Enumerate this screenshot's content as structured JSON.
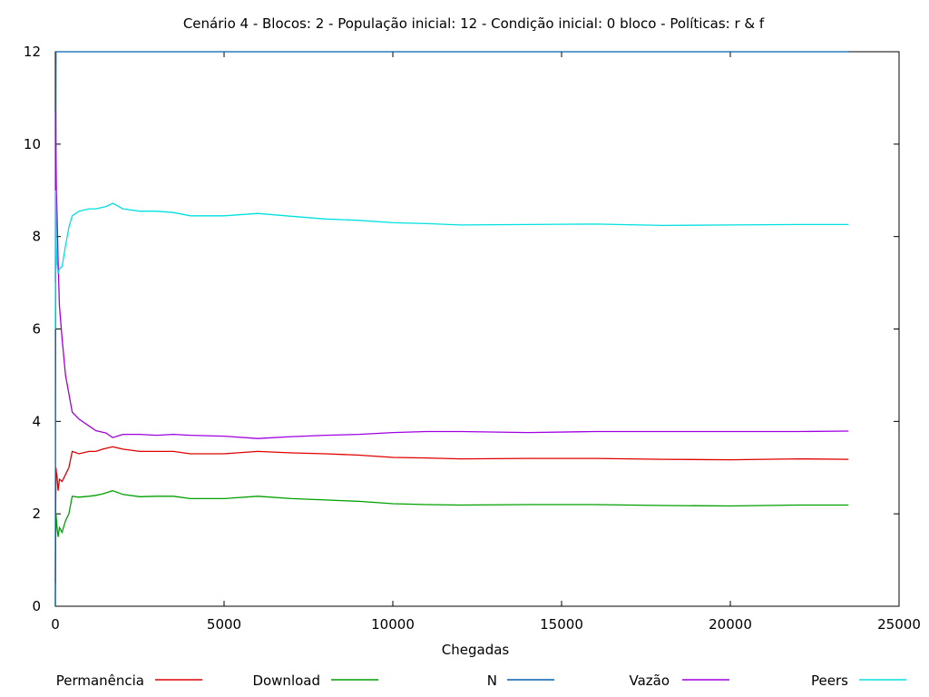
{
  "chart_data": {
    "type": "line",
    "title": "Cenário 4 - Blocos: 2 - População inicial: 12 - Condição inicial: 0 bloco - Políticas: r & f",
    "xlabel": "Chegadas",
    "ylabel": "",
    "xlim": [
      0,
      25000
    ],
    "ylim": [
      0,
      12
    ],
    "xticks": [
      0,
      5000,
      10000,
      15000,
      20000,
      25000
    ],
    "yticks": [
      0,
      2,
      4,
      6,
      8,
      10,
      12
    ],
    "legend_position": "bottom",
    "series": [
      {
        "name": "Permanência",
        "color": "#e00000",
        "points": [
          [
            0,
            0.5
          ],
          [
            10,
            2.2
          ],
          [
            20,
            3.0
          ],
          [
            30,
            2.9
          ],
          [
            50,
            2.8
          ],
          [
            80,
            2.5
          ],
          [
            120,
            2.75
          ],
          [
            200,
            2.7
          ],
          [
            300,
            2.85
          ],
          [
            400,
            3.0
          ],
          [
            500,
            3.35
          ],
          [
            700,
            3.3
          ],
          [
            1000,
            3.35
          ],
          [
            1200,
            3.35
          ],
          [
            1400,
            3.4
          ],
          [
            1700,
            3.45
          ],
          [
            2000,
            3.4
          ],
          [
            2500,
            3.35
          ],
          [
            3000,
            3.35
          ],
          [
            3500,
            3.35
          ],
          [
            4000,
            3.3
          ],
          [
            5000,
            3.3
          ],
          [
            6000,
            3.35
          ],
          [
            7000,
            3.32
          ],
          [
            8000,
            3.3
          ],
          [
            9000,
            3.27
          ],
          [
            10000,
            3.22
          ],
          [
            11000,
            3.21
          ],
          [
            12000,
            3.19
          ],
          [
            14000,
            3.2
          ],
          [
            16000,
            3.2
          ],
          [
            18000,
            3.18
          ],
          [
            20000,
            3.17
          ],
          [
            22000,
            3.19
          ],
          [
            23500,
            3.18
          ]
        ]
      },
      {
        "name": "Download",
        "color": "#00a000",
        "points": [
          [
            0,
            0.0
          ],
          [
            10,
            1.5
          ],
          [
            20,
            2.0
          ],
          [
            30,
            1.9
          ],
          [
            50,
            1.7
          ],
          [
            80,
            1.5
          ],
          [
            120,
            1.7
          ],
          [
            200,
            1.6
          ],
          [
            300,
            1.85
          ],
          [
            400,
            2.0
          ],
          [
            500,
            2.38
          ],
          [
            700,
            2.36
          ],
          [
            1000,
            2.38
          ],
          [
            1200,
            2.4
          ],
          [
            1400,
            2.43
          ],
          [
            1700,
            2.5
          ],
          [
            2000,
            2.42
          ],
          [
            2500,
            2.37
          ],
          [
            3000,
            2.38
          ],
          [
            3500,
            2.38
          ],
          [
            4000,
            2.33
          ],
          [
            5000,
            2.33
          ],
          [
            6000,
            2.38
          ],
          [
            7000,
            2.33
          ],
          [
            8000,
            2.3
          ],
          [
            9000,
            2.27
          ],
          [
            10000,
            2.22
          ],
          [
            11000,
            2.2
          ],
          [
            12000,
            2.19
          ],
          [
            14000,
            2.2
          ],
          [
            16000,
            2.2
          ],
          [
            18000,
            2.18
          ],
          [
            20000,
            2.17
          ],
          [
            22000,
            2.19
          ],
          [
            23500,
            2.19
          ]
        ]
      },
      {
        "name": "N",
        "color": "#0060b0",
        "points": [
          [
            0,
            0.0
          ],
          [
            5,
            4
          ],
          [
            10,
            8
          ],
          [
            20,
            12
          ],
          [
            23500,
            12
          ]
        ]
      },
      {
        "name": "Vazão",
        "color": "#a000e0",
        "points": [
          [
            0,
            7.0
          ],
          [
            10,
            10.7
          ],
          [
            20,
            9.8
          ],
          [
            30,
            9.0
          ],
          [
            50,
            8.5
          ],
          [
            80,
            7.5
          ],
          [
            120,
            6.5
          ],
          [
            200,
            5.8
          ],
          [
            300,
            5.0
          ],
          [
            400,
            4.6
          ],
          [
            500,
            4.2
          ],
          [
            700,
            4.05
          ],
          [
            1000,
            3.9
          ],
          [
            1200,
            3.8
          ],
          [
            1500,
            3.75
          ],
          [
            1700,
            3.65
          ],
          [
            2000,
            3.72
          ],
          [
            2500,
            3.72
          ],
          [
            3000,
            3.7
          ],
          [
            3500,
            3.72
          ],
          [
            4000,
            3.7
          ],
          [
            5000,
            3.68
          ],
          [
            6000,
            3.63
          ],
          [
            7000,
            3.67
          ],
          [
            8000,
            3.7
          ],
          [
            9000,
            3.72
          ],
          [
            10000,
            3.76
          ],
          [
            11000,
            3.78
          ],
          [
            12000,
            3.78
          ],
          [
            14000,
            3.76
          ],
          [
            16000,
            3.78
          ],
          [
            18000,
            3.78
          ],
          [
            20000,
            3.78
          ],
          [
            22000,
            3.78
          ],
          [
            23500,
            3.79
          ]
        ]
      },
      {
        "name": "Peers",
        "color": "#00e0e0",
        "points": [
          [
            0,
            6.0
          ],
          [
            10,
            9.0
          ],
          [
            20,
            8.5
          ],
          [
            30,
            7.8
          ],
          [
            50,
            7.4
          ],
          [
            80,
            7.2
          ],
          [
            120,
            7.3
          ],
          [
            200,
            7.35
          ],
          [
            300,
            7.8
          ],
          [
            400,
            8.2
          ],
          [
            500,
            8.45
          ],
          [
            700,
            8.55
          ],
          [
            1000,
            8.6
          ],
          [
            1200,
            8.6
          ],
          [
            1500,
            8.65
          ],
          [
            1700,
            8.72
          ],
          [
            2000,
            8.6
          ],
          [
            2500,
            8.55
          ],
          [
            3000,
            8.55
          ],
          [
            3500,
            8.52
          ],
          [
            4000,
            8.45
          ],
          [
            5000,
            8.45
          ],
          [
            6000,
            8.5
          ],
          [
            7000,
            8.44
          ],
          [
            8000,
            8.38
          ],
          [
            9000,
            8.35
          ],
          [
            10000,
            8.3
          ],
          [
            11000,
            8.28
          ],
          [
            12000,
            8.25
          ],
          [
            14000,
            8.26
          ],
          [
            16000,
            8.27
          ],
          [
            18000,
            8.24
          ],
          [
            20000,
            8.25
          ],
          [
            22000,
            8.26
          ],
          [
            23500,
            8.26
          ]
        ]
      }
    ]
  }
}
